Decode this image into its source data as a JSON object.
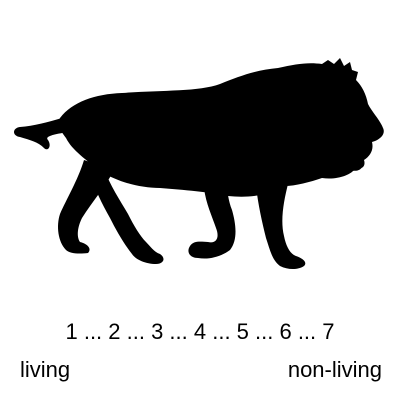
{
  "image": {
    "subject": "lion-silhouette",
    "fill_color": "#000000",
    "background_color": "#ffffff"
  },
  "rating_scale": {
    "numbers_text": "1 ... 2 ... 3 ... 4 ... 5 ... 6 ... 7",
    "left_anchor": "living",
    "right_anchor": "non-living"
  }
}
